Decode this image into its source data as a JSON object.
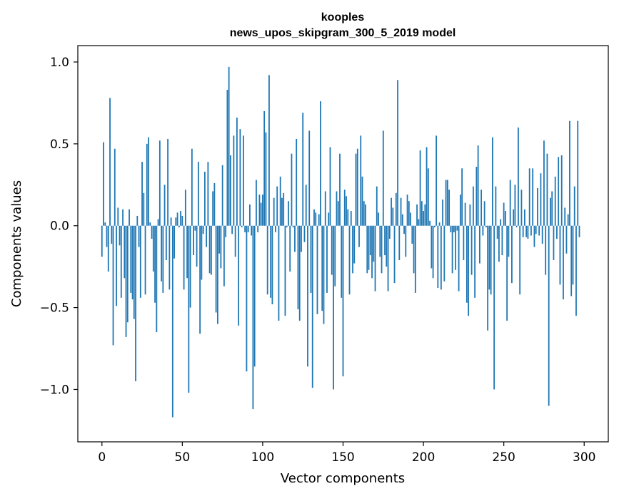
{
  "chart_data": {
    "type": "bar",
    "title_line1": "kooples",
    "title_line2": "news_upos_skipgram_300_5_2019 model",
    "xlabel": "Vector components",
    "ylabel": "Components values",
    "xlim": [
      -15,
      315
    ],
    "ylim": [
      -1.32,
      1.1
    ],
    "xticks": [
      0,
      50,
      100,
      150,
      200,
      250,
      300
    ],
    "xtick_labels": [
      "0",
      "50",
      "100",
      "150",
      "200",
      "250",
      "300"
    ],
    "yticks": [
      -1.0,
      -0.5,
      0.0,
      0.5,
      1.0
    ],
    "ytick_labels": [
      "−1.0",
      "−0.5",
      "0.0",
      "0.5",
      "1.0"
    ],
    "bar_color": "#1f77b4",
    "grid": false,
    "values": [
      -0.19,
      0.51,
      0.02,
      -0.13,
      -0.28,
      0.78,
      -0.11,
      -0.73,
      0.47,
      -0.49,
      0.11,
      -0.12,
      -0.44,
      0.1,
      -0.32,
      -0.68,
      -0.59,
      0.1,
      -0.41,
      -0.45,
      -0.57,
      -0.95,
      0.06,
      -0.13,
      -0.44,
      0.39,
      0.2,
      -0.42,
      0.5,
      0.54,
      0.02,
      -0.08,
      -0.28,
      -0.47,
      -0.65,
      0.04,
      0.52,
      -0.34,
      -0.41,
      0.25,
      -0.21,
      0.53,
      -0.39,
      0.05,
      -1.17,
      -0.2,
      0.05,
      0.08,
      -0.01,
      0.09,
      0.06,
      -0.39,
      0.22,
      -0.32,
      -1.02,
      -0.5,
      0.47,
      -0.18,
      -0.03,
      -0.25,
      0.39,
      -0.66,
      -0.33,
      -0.05,
      0.33,
      -0.13,
      0.39,
      -0.29,
      -0.3,
      0.21,
      0.26,
      -0.53,
      -0.6,
      -0.17,
      -0.26,
      0.37,
      -0.37,
      -0.07,
      0.83,
      0.97,
      0.43,
      -0.05,
      0.55,
      -0.19,
      0.66,
      -0.61,
      0.59,
      -0.01,
      0.55,
      -0.04,
      -0.89,
      -0.04,
      0.13,
      -0.06,
      -1.12,
      -0.86,
      0.28,
      -0.04,
      0.19,
      0.14,
      0.19,
      0.7,
      0.57,
      -0.42,
      0.92,
      -0.44,
      -0.48,
      0.17,
      -0.04,
      0.24,
      -0.58,
      0.3,
      0.17,
      0.2,
      -0.55,
      -0.01,
      0.15,
      -0.28,
      0.44,
      -0.01,
      -0.16,
      0.53,
      -0.51,
      -0.58,
      -0.16,
      0.69,
      -0.1,
      0.25,
      -0.86,
      0.58,
      -0.41,
      -0.99,
      0.1,
      0.08,
      -0.54,
      0.07,
      0.76,
      -0.52,
      -0.6,
      0.21,
      -0.41,
      0.08,
      0.48,
      -0.3,
      -1.0,
      -0.37,
      0.21,
      0.15,
      0.44,
      -0.44,
      -0.92,
      0.22,
      0.18,
      0.1,
      -0.42,
      0.09,
      -0.29,
      -0.23,
      0.44,
      0.47,
      -0.13,
      0.55,
      0.3,
      0.15,
      0.13,
      -0.29,
      -0.27,
      -0.18,
      -0.32,
      -0.22,
      -0.4,
      0.24,
      0.08,
      -0.19,
      -0.29,
      0.58,
      -0.18,
      -0.25,
      -0.4,
      -0.08,
      0.17,
      0.11,
      -0.35,
      0.2,
      0.89,
      -0.21,
      0.17,
      0.07,
      -0.05,
      -0.19,
      0.19,
      0.15,
      0.08,
      -0.11,
      -0.29,
      -0.41,
      0.13,
      0.04,
      0.46,
      0.15,
      0.09,
      0.13,
      0.48,
      0.35,
      0.03,
      -0.26,
      -0.32,
      -0.01,
      0.55,
      -0.38,
      0.02,
      -0.39,
      0.16,
      -0.34,
      0.28,
      0.28,
      0.22,
      -0.04,
      -0.29,
      -0.04,
      -0.27,
      -0.03,
      -0.4,
      0.19,
      0.35,
      -0.21,
      0.14,
      -0.47,
      -0.55,
      0.13,
      -0.3,
      0.24,
      -0.44,
      0.36,
      0.49,
      -0.23,
      0.22,
      -0.06,
      0.15,
      -0.01,
      -0.64,
      -0.39,
      -0.42,
      0.54,
      -1.0,
      0.24,
      -0.08,
      -0.22,
      0.04,
      -0.18,
      0.14,
      0.09,
      -0.58,
      -0.19,
      0.28,
      -0.35,
      0.1,
      0.25,
      -0.01,
      0.6,
      -0.42,
      0.22,
      -0.07,
      0.1,
      -0.07,
      -0.08,
      0.35,
      -0.06,
      0.35,
      -0.13,
      -0.05,
      0.23,
      -0.06,
      0.32,
      -0.11,
      0.52,
      -0.3,
      0.44,
      -1.1,
      0.17,
      0.21,
      -0.21,
      0.3,
      -0.08,
      0.42,
      -0.36,
      0.43,
      -0.45,
      0.11,
      -0.17,
      0.07,
      0.64,
      -0.43,
      -0.36,
      0.24,
      -0.55,
      0.64,
      -0.07
    ]
  }
}
